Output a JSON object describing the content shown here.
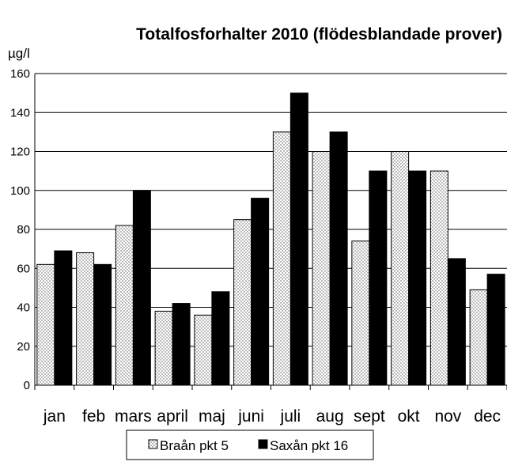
{
  "chart_data": {
    "type": "bar",
    "title": "Totalfosforhalter 2010 (flödesblandade prover)",
    "ylabel": "µg/l",
    "xlabel": "",
    "ylim": [
      0,
      160
    ],
    "yticks": [
      0,
      20,
      40,
      60,
      80,
      100,
      120,
      140,
      160
    ],
    "categories": [
      "jan",
      "feb",
      "mars",
      "april",
      "maj",
      "juni",
      "juli",
      "aug",
      "sept",
      "okt",
      "nov",
      "dec"
    ],
    "series": [
      {
        "name": "Braån pkt 5",
        "pattern": "dotted",
        "color": "#ffffff",
        "values": [
          62,
          68,
          82,
          38,
          36,
          85,
          130,
          120,
          74,
          120,
          110,
          49
        ]
      },
      {
        "name": "Saxån pkt 16",
        "pattern": "solid",
        "color": "#000000",
        "values": [
          69,
          62,
          100,
          42,
          48,
          96,
          150,
          130,
          110,
          110,
          65,
          57
        ]
      }
    ],
    "legend_position": "bottom",
    "grid": "horizontal"
  }
}
